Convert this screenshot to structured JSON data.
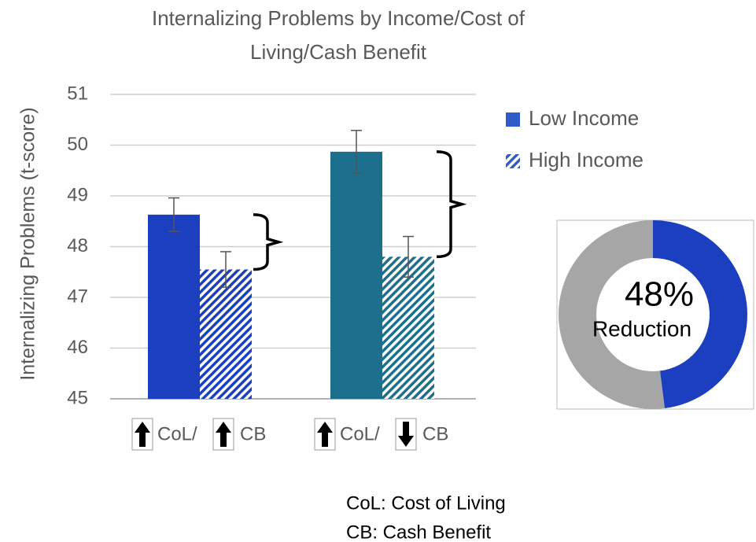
{
  "chart_data": {
    "type": "bar",
    "title": [
      "Internalizing Problems by Income/Cost of",
      "Living/Cash Benefit"
    ],
    "y_label": "Internalizing Problems (t-score)",
    "category_parts": [
      [
        "CoL/",
        "CB"
      ],
      [
        "CoL/",
        "CB"
      ]
    ],
    "arrows": [
      [
        "up",
        "up"
      ],
      [
        "up",
        "down"
      ]
    ],
    "series": [
      {
        "name": "Low Income",
        "color": "#2f5cc9",
        "bar_colors": [
          "#1c3fbf",
          "#1d6f8e"
        ],
        "values": [
          48.63,
          49.87
        ],
        "errors": [
          0.33,
          0.42
        ]
      },
      {
        "name": "High Income",
        "color": "#2f5cc9",
        "pattern": "hatch",
        "bar_colors": [
          "#1c3fbf",
          "#1d6f8e"
        ],
        "values": [
          47.55,
          47.8
        ],
        "errors": [
          0.35,
          0.4
        ]
      }
    ],
    "ylim": [
      45,
      51
    ],
    "yticks": [
      45,
      46,
      47,
      48,
      49,
      50,
      51
    ],
    "grid": true,
    "legend": "right",
    "donut": {
      "value": 48,
      "value_label": "48%",
      "label": "Reduction",
      "color": "#1c3fbf",
      "rest_color": "#a6a6a6"
    },
    "notes": [
      "CoL: Cost of Living",
      "CB: Cash Benefit"
    ]
  }
}
